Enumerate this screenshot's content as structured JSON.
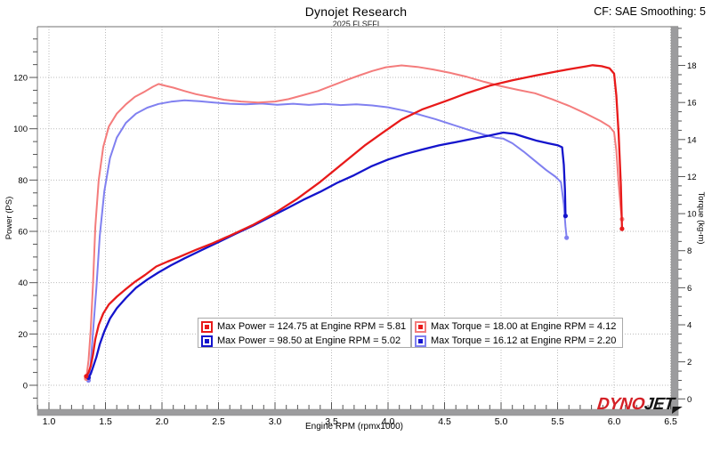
{
  "window": {
    "title": "Dynojet Research",
    "subtitle": "2025 FLSFFI",
    "correction_factor": "CF: SAE Smoothing: 5"
  },
  "chart_data": {
    "type": "line",
    "title": "Dynojet Research",
    "subtitle": "2025 FLSFFI",
    "xlabel": "Engine RPM (rpmx1000)",
    "ylabel_left": "Power (PS)",
    "ylabel_right": "Torque (kg-m)",
    "grid": "dotted",
    "legend_position": "inside-bottom-center",
    "xlim": [
      0.9,
      6.52
    ],
    "x_major_ticks": [
      1.0,
      1.5,
      2.0,
      2.5,
      3.0,
      3.5,
      4.0,
      4.5,
      5.0,
      5.5,
      6.0,
      6.5
    ],
    "x_minor_step": 0.1,
    "power_lim": [
      -9.7,
      139.8
    ],
    "power_major_ticks": [
      0,
      20,
      40,
      60,
      80,
      100,
      120
    ],
    "power_minor_step": 5,
    "torque_lim": [
      -0.6,
      20.1
    ],
    "torque_major_ticks": [
      0,
      2,
      4,
      6,
      8,
      10,
      12,
      14,
      16,
      18
    ],
    "torque_minor_step": 0.5,
    "series": [
      {
        "id": "torque-blue",
        "axis": "torque",
        "color": "#8080f0",
        "width": 2,
        "max": {
          "value": 16.12,
          "rpm": 2.2
        },
        "points": [
          [
            1.35,
            1.0
          ],
          [
            1.37,
            2.0
          ],
          [
            1.39,
            3.6
          ],
          [
            1.42,
            6.0
          ],
          [
            1.45,
            8.8
          ],
          [
            1.49,
            11.2
          ],
          [
            1.54,
            13.0
          ],
          [
            1.6,
            14.1
          ],
          [
            1.68,
            14.9
          ],
          [
            1.77,
            15.4
          ],
          [
            1.87,
            15.72
          ],
          [
            1.97,
            15.92
          ],
          [
            2.08,
            16.04
          ],
          [
            2.2,
            16.12
          ],
          [
            2.33,
            16.07
          ],
          [
            2.46,
            16.0
          ],
          [
            2.6,
            15.93
          ],
          [
            2.74,
            15.9
          ],
          [
            2.88,
            15.94
          ],
          [
            3.02,
            15.88
          ],
          [
            3.16,
            15.93
          ],
          [
            3.3,
            15.87
          ],
          [
            3.44,
            15.92
          ],
          [
            3.58,
            15.86
          ],
          [
            3.72,
            15.9
          ],
          [
            3.86,
            15.84
          ],
          [
            4.0,
            15.74
          ],
          [
            4.14,
            15.56
          ],
          [
            4.28,
            15.34
          ],
          [
            4.42,
            15.1
          ],
          [
            4.56,
            14.82
          ],
          [
            4.7,
            14.55
          ],
          [
            4.84,
            14.28
          ],
          [
            4.95,
            14.1
          ],
          [
            5.02,
            14.05
          ],
          [
            5.1,
            13.8
          ],
          [
            5.2,
            13.35
          ],
          [
            5.3,
            12.85
          ],
          [
            5.4,
            12.35
          ],
          [
            5.48,
            12.0
          ],
          [
            5.53,
            11.7
          ],
          [
            5.555,
            10.5
          ],
          [
            5.57,
            9.3
          ],
          [
            5.58,
            8.7
          ]
        ]
      },
      {
        "id": "torque-red",
        "axis": "torque",
        "color": "#f47c7c",
        "width": 2,
        "max": {
          "value": 18.0,
          "rpm": 4.12
        },
        "points": [
          [
            1.33,
            1.1
          ],
          [
            1.35,
            2.1
          ],
          [
            1.37,
            3.8
          ],
          [
            1.39,
            6.2
          ],
          [
            1.41,
            9.3
          ],
          [
            1.44,
            11.8
          ],
          [
            1.48,
            13.6
          ],
          [
            1.53,
            14.7
          ],
          [
            1.6,
            15.4
          ],
          [
            1.68,
            15.9
          ],
          [
            1.76,
            16.3
          ],
          [
            1.85,
            16.6
          ],
          [
            1.92,
            16.85
          ],
          [
            1.97,
            17.0
          ],
          [
            2.03,
            16.9
          ],
          [
            2.1,
            16.8
          ],
          [
            2.2,
            16.62
          ],
          [
            2.3,
            16.45
          ],
          [
            2.42,
            16.3
          ],
          [
            2.55,
            16.15
          ],
          [
            2.7,
            16.05
          ],
          [
            2.85,
            16.0
          ],
          [
            3.0,
            16.05
          ],
          [
            3.12,
            16.18
          ],
          [
            3.25,
            16.4
          ],
          [
            3.38,
            16.62
          ],
          [
            3.5,
            16.9
          ],
          [
            3.62,
            17.18
          ],
          [
            3.74,
            17.45
          ],
          [
            3.86,
            17.7
          ],
          [
            3.98,
            17.9
          ],
          [
            4.12,
            18.0
          ],
          [
            4.26,
            17.92
          ],
          [
            4.4,
            17.78
          ],
          [
            4.55,
            17.6
          ],
          [
            4.7,
            17.38
          ],
          [
            4.85,
            17.12
          ],
          [
            5.0,
            16.88
          ],
          [
            5.15,
            16.68
          ],
          [
            5.3,
            16.5
          ],
          [
            5.45,
            16.18
          ],
          [
            5.6,
            15.82
          ],
          [
            5.75,
            15.4
          ],
          [
            5.88,
            15.0
          ],
          [
            5.96,
            14.7
          ],
          [
            6.0,
            14.4
          ],
          [
            6.02,
            13.4
          ],
          [
            6.04,
            11.6
          ],
          [
            6.06,
            10.2
          ],
          [
            6.07,
            9.7
          ]
        ]
      },
      {
        "id": "power-blue",
        "axis": "power",
        "color": "#1414cc",
        "width": 2.3,
        "max": {
          "value": 98.5,
          "rpm": 5.02
        },
        "points": [
          [
            1.35,
            3.0
          ],
          [
            1.37,
            4.5
          ],
          [
            1.39,
            7.0
          ],
          [
            1.42,
            11.0
          ],
          [
            1.45,
            16.0
          ],
          [
            1.49,
            21.0
          ],
          [
            1.54,
            26.0
          ],
          [
            1.6,
            30.0
          ],
          [
            1.68,
            34.0
          ],
          [
            1.77,
            38.0
          ],
          [
            1.87,
            41.2
          ],
          [
            1.97,
            44.0
          ],
          [
            2.08,
            46.8
          ],
          [
            2.2,
            49.5
          ],
          [
            2.35,
            52.7
          ],
          [
            2.5,
            55.8
          ],
          [
            2.65,
            59.0
          ],
          [
            2.8,
            62.1
          ],
          [
            2.95,
            65.5
          ],
          [
            3.1,
            68.8
          ],
          [
            3.25,
            72.3
          ],
          [
            3.4,
            75.4
          ],
          [
            3.55,
            78.9
          ],
          [
            3.7,
            81.9
          ],
          [
            3.85,
            85.3
          ],
          [
            4.0,
            88.0
          ],
          [
            4.15,
            90.1
          ],
          [
            4.3,
            91.9
          ],
          [
            4.45,
            93.5
          ],
          [
            4.6,
            94.8
          ],
          [
            4.75,
            96.1
          ],
          [
            4.9,
            97.4
          ],
          [
            5.02,
            98.5
          ],
          [
            5.12,
            98.0
          ],
          [
            5.22,
            96.6
          ],
          [
            5.32,
            95.3
          ],
          [
            5.42,
            94.3
          ],
          [
            5.5,
            93.6
          ],
          [
            5.54,
            92.8
          ],
          [
            5.555,
            86.0
          ],
          [
            5.565,
            76.0
          ],
          [
            5.57,
            66.0
          ]
        ]
      },
      {
        "id": "power-red",
        "axis": "power",
        "color": "#e81a1a",
        "width": 2.3,
        "max": {
          "value": 124.75,
          "rpm": 5.81
        },
        "points": [
          [
            1.33,
            3.5
          ],
          [
            1.35,
            5.0
          ],
          [
            1.37,
            7.5
          ],
          [
            1.39,
            12.0
          ],
          [
            1.41,
            18.0
          ],
          [
            1.44,
            23.5
          ],
          [
            1.48,
            28.0
          ],
          [
            1.53,
            31.5
          ],
          [
            1.6,
            34.5
          ],
          [
            1.68,
            37.5
          ],
          [
            1.76,
            40.3
          ],
          [
            1.85,
            43.0
          ],
          [
            1.95,
            46.3
          ],
          [
            2.05,
            48.2
          ],
          [
            2.15,
            50.0
          ],
          [
            2.3,
            52.8
          ],
          [
            2.45,
            55.4
          ],
          [
            2.6,
            58.3
          ],
          [
            2.8,
            62.4
          ],
          [
            3.0,
            67.2
          ],
          [
            3.2,
            72.8
          ],
          [
            3.4,
            79.3
          ],
          [
            3.6,
            86.5
          ],
          [
            3.8,
            93.7
          ],
          [
            3.95,
            98.4
          ],
          [
            4.12,
            103.6
          ],
          [
            4.3,
            107.5
          ],
          [
            4.5,
            110.6
          ],
          [
            4.7,
            113.9
          ],
          [
            4.9,
            116.8
          ],
          [
            5.1,
            118.9
          ],
          [
            5.3,
            120.7
          ],
          [
            5.5,
            122.4
          ],
          [
            5.65,
            123.6
          ],
          [
            5.75,
            124.3
          ],
          [
            5.81,
            124.75
          ],
          [
            5.89,
            124.4
          ],
          [
            5.96,
            123.6
          ],
          [
            6.0,
            121.5
          ],
          [
            6.02,
            113.0
          ],
          [
            6.04,
            98.0
          ],
          [
            6.06,
            78.0
          ],
          [
            6.07,
            61.0
          ]
        ]
      }
    ]
  },
  "legend": {
    "power_box": [
      {
        "label": "Max Power = 124.75 at Engine RPM = 5.81",
        "swatch_border": "#e81a1a",
        "swatch_fill": "#e81a1a"
      },
      {
        "label": "Max Power = 98.50 at Engine RPM = 5.02",
        "swatch_border": "#1414cc",
        "swatch_fill": "#1414cc"
      }
    ],
    "torque_box": [
      {
        "label": "Max Torque = 18.00 at Engine RPM = 4.12",
        "swatch_border": "#f47c7c",
        "swatch_fill": "#e81a1a"
      },
      {
        "label": "Max Torque = 16.12 at Engine RPM = 2.20",
        "swatch_border": "#8080f0",
        "swatch_fill": "#1414cc"
      }
    ]
  },
  "logo": {
    "part1": "DYNO",
    "part2": "JET",
    "color1": "#d42026",
    "color2": "#151515"
  },
  "colors": {
    "grid": "#bbbbbb",
    "axis_bar": "#9c9c9e",
    "axis_line": "#777777",
    "tick": "#555555"
  }
}
